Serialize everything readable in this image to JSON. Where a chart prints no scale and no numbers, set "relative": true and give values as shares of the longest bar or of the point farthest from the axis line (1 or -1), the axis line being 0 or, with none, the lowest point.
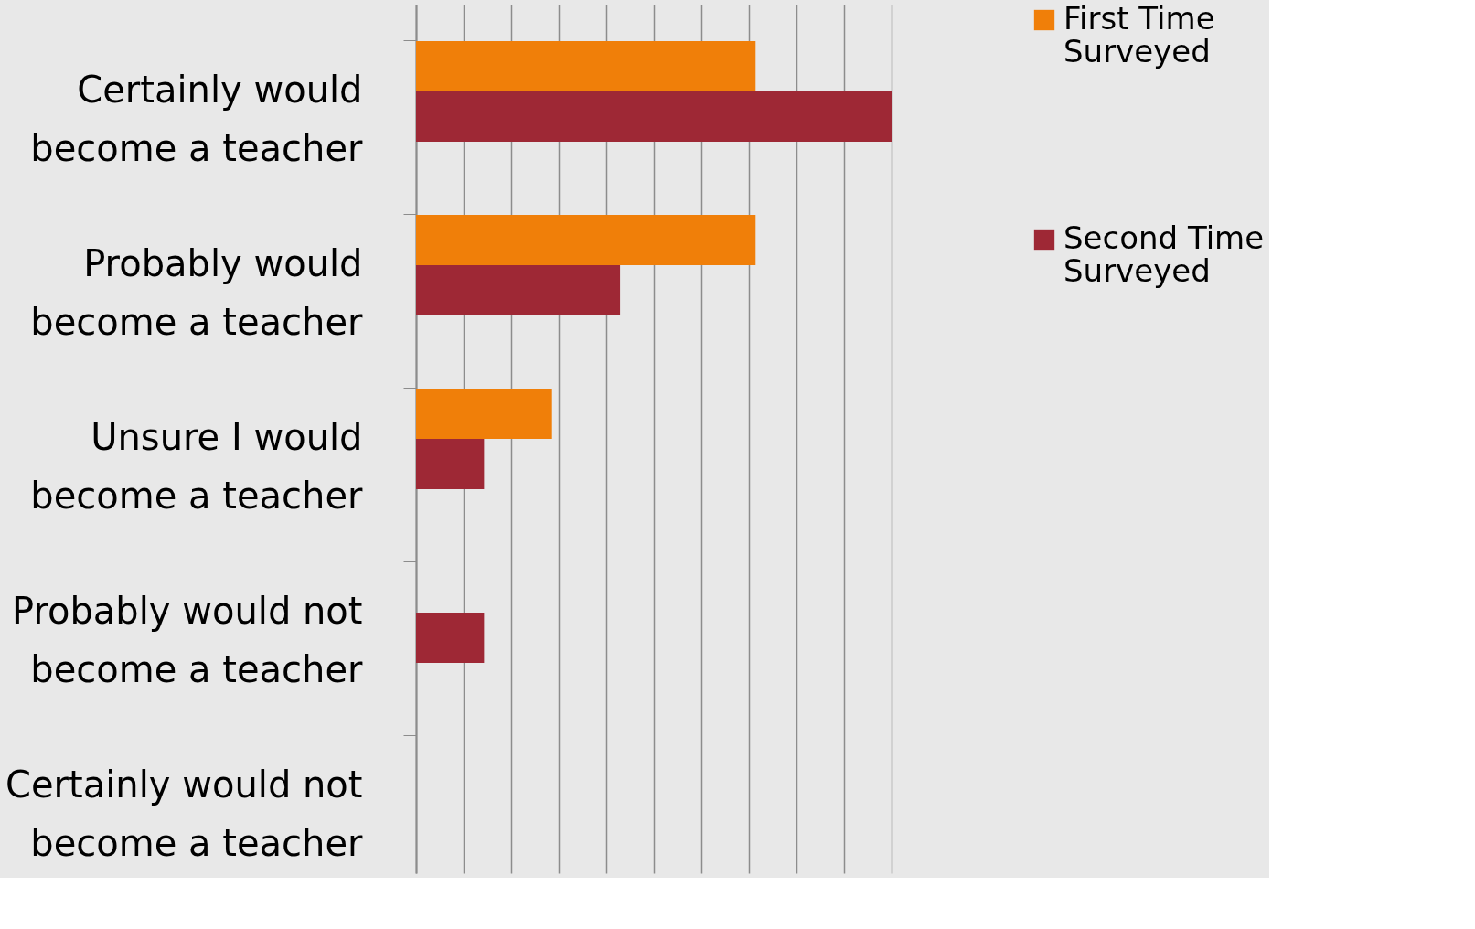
{
  "chart_data": {
    "type": "bar",
    "orientation": "horizontal",
    "relative": true,
    "grid": "x",
    "legend": "right",
    "categories": [
      "Certainly would become a teacher",
      "Probably would become a teacher",
      "Unsure I would become a teacher",
      "Probably would not become a teacher",
      "Certainly would not become a teacher"
    ],
    "series": [
      {
        "name": "First Time Surveyed",
        "color": "#f07f09",
        "values": [
          0.714,
          0.714,
          0.286,
          0,
          0
        ]
      },
      {
        "name": "Second Time Surveyed",
        "color": "#9e2835",
        "values": [
          1,
          0.429,
          0.143,
          0.143,
          0
        ]
      }
    ]
  }
}
